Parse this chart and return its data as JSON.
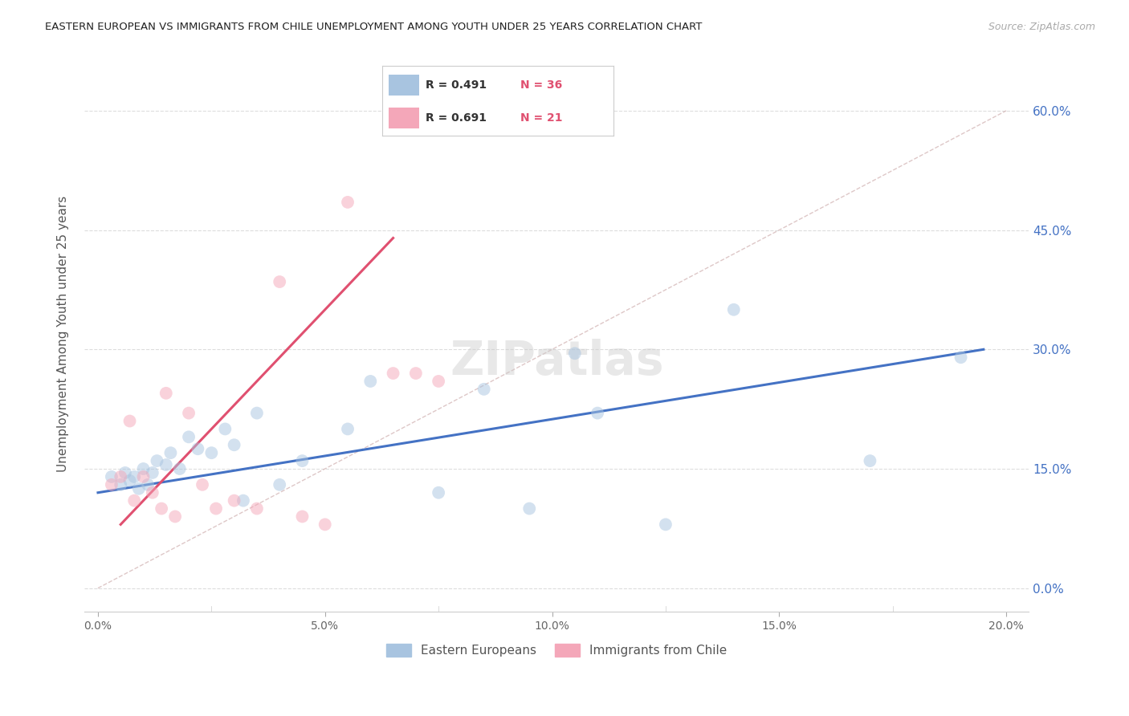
{
  "title": "EASTERN EUROPEAN VS IMMIGRANTS FROM CHILE UNEMPLOYMENT AMONG YOUTH UNDER 25 YEARS CORRELATION CHART",
  "source": "Source: ZipAtlas.com",
  "ylabel": "Unemployment Among Youth under 25 years",
  "x_tick_values": [
    0.0,
    5.0,
    10.0,
    15.0,
    20.0
  ],
  "y_tick_values": [
    0.0,
    15.0,
    30.0,
    45.0,
    60.0
  ],
  "xlim": [
    -0.3,
    20.5
  ],
  "ylim": [
    -3.0,
    67.0
  ],
  "legend_label1": "Eastern Europeans",
  "legend_label2": "Immigrants from Chile",
  "blue_color": "#a8c4e0",
  "blue_line_color": "#4472c4",
  "pink_color": "#f4a7b9",
  "pink_line_color": "#e05070",
  "diag_line_color": "#d0b0b0",
  "right_tick_color": "#4472c4",
  "title_color": "#222222",
  "source_color": "#aaaaaa",
  "blue_scatter_x": [
    0.3,
    0.5,
    0.6,
    0.7,
    0.8,
    0.9,
    1.0,
    1.1,
    1.2,
    1.3,
    1.5,
    1.6,
    1.8,
    2.0,
    2.2,
    2.5,
    2.8,
    3.0,
    3.2,
    3.5,
    4.0,
    4.5,
    5.5,
    6.0,
    7.5,
    8.5,
    9.5,
    10.5,
    11.0,
    12.5,
    14.0,
    17.0,
    19.0
  ],
  "blue_scatter_y": [
    14.0,
    13.0,
    14.5,
    13.5,
    14.0,
    12.5,
    15.0,
    13.0,
    14.5,
    16.0,
    15.5,
    17.0,
    15.0,
    19.0,
    17.5,
    17.0,
    20.0,
    18.0,
    11.0,
    22.0,
    13.0,
    16.0,
    20.0,
    26.0,
    12.0,
    25.0,
    10.0,
    29.5,
    22.0,
    8.0,
    35.0,
    16.0,
    29.0
  ],
  "pink_scatter_x": [
    0.3,
    0.5,
    0.7,
    0.8,
    1.0,
    1.2,
    1.4,
    1.5,
    1.7,
    2.0,
    2.3,
    2.6,
    3.0,
    3.5,
    4.0,
    4.5,
    5.0,
    5.5,
    6.5,
    7.0,
    7.5
  ],
  "pink_scatter_y": [
    13.0,
    14.0,
    21.0,
    11.0,
    14.0,
    12.0,
    10.0,
    24.5,
    9.0,
    22.0,
    13.0,
    10.0,
    11.0,
    10.0,
    38.5,
    9.0,
    8.0,
    48.5,
    27.0,
    27.0,
    26.0
  ],
  "blue_line_x": [
    0.0,
    19.5
  ],
  "blue_line_y": [
    12.0,
    30.0
  ],
  "pink_line_x": [
    0.5,
    6.5
  ],
  "pink_line_y": [
    8.0,
    44.0
  ],
  "diag_line_x": [
    0.0,
    20.0
  ],
  "diag_line_y": [
    0.0,
    60.0
  ],
  "grid_color": "#dddddd",
  "bg_color": "#ffffff",
  "scatter_size": 130,
  "scatter_alpha": 0.5
}
